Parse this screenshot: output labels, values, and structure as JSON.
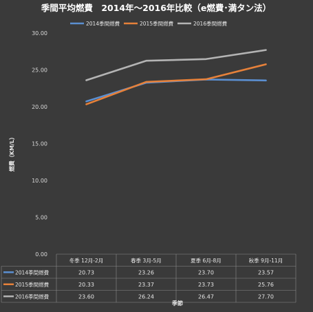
{
  "chart_data": {
    "type": "line",
    "title": "季間平均燃費　2014年～2016年比較（e燃費･満タン法）",
    "ylabel": "燃費（KM/L）",
    "xlabel": "季節",
    "ylim": [
      0,
      30
    ],
    "ytick_labels": [
      "0.00",
      "5.00",
      "10.00",
      "15.00",
      "20.00",
      "25.00",
      "30.00"
    ],
    "grid": false,
    "legend_position": "top",
    "categories": [
      "冬季 12月-2月",
      "春季 3月-5月",
      "夏季 6月-8月",
      "秋季 9月-11月"
    ],
    "series": [
      {
        "name": "2014季間燃費",
        "color": "#5b8fd1",
        "values": [
          20.73,
          23.26,
          23.7,
          23.57
        ],
        "value_labels": [
          "20.73",
          "23.26",
          "23.70",
          "23.57"
        ]
      },
      {
        "name": "2015季間燃費",
        "color": "#e6813a",
        "values": [
          20.33,
          23.37,
          23.73,
          25.76
        ],
        "value_labels": [
          "20.33",
          "23.37",
          "23.73",
          "25.76"
        ]
      },
      {
        "name": "2016季間燃費",
        "color": "#b4b4b4",
        "values": [
          23.6,
          26.24,
          26.47,
          27.7
        ],
        "value_labels": [
          "23.60",
          "26.24",
          "26.47",
          "27.70"
        ]
      }
    ]
  }
}
